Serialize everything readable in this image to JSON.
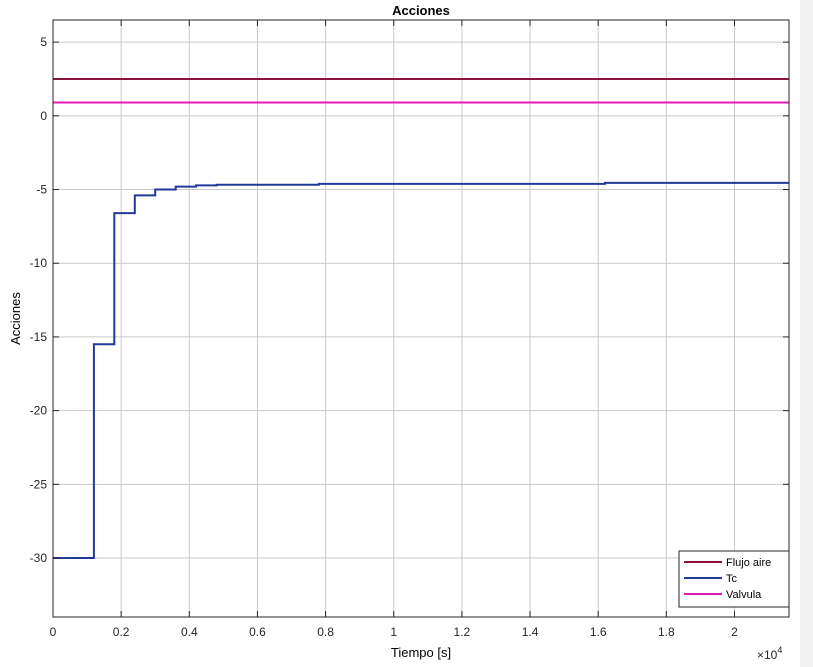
{
  "chart_data": {
    "type": "line",
    "title": "Acciones",
    "xlabel": "Tiempo [s]",
    "ylabel": "Acciones",
    "x_multiplier_label": "×10",
    "x_multiplier_exponent": "4",
    "xlim": [
      0,
      21600
    ],
    "ylim": [
      -34,
      6.5
    ],
    "x_ticks": [
      0,
      2000,
      4000,
      6000,
      8000,
      10000,
      12000,
      14000,
      16000,
      18000,
      20000
    ],
    "x_tick_labels": [
      "0",
      "0.2",
      "0.4",
      "0.6",
      "0.8",
      "1",
      "1.2",
      "1.4",
      "1.6",
      "1.8",
      "2"
    ],
    "y_ticks": [
      5,
      0,
      -5,
      -10,
      -15,
      -20,
      -25,
      -30
    ],
    "y_tick_labels": [
      "5",
      "0",
      "-5",
      "-10",
      "-15",
      "-20",
      "-25",
      "-30"
    ],
    "grid": true,
    "legend_position": "bottom-right",
    "series": [
      {
        "name": "Flujo aire",
        "color": "#8b1538",
        "x": [
          0,
          21600
        ],
        "y": [
          2.5,
          2.5
        ]
      },
      {
        "name": "Tc",
        "color": "#23399a",
        "step": true,
        "x": [
          0,
          1200,
          1800,
          2400,
          3000,
          3600,
          4200,
          4800,
          7800,
          16200,
          21600
        ],
        "y": [
          -30,
          -15.5,
          -6.6,
          -5.4,
          -5.0,
          -4.8,
          -4.72,
          -4.67,
          -4.62,
          -4.55,
          -4.55
        ]
      },
      {
        "name": "Valvula",
        "color": "#e619b4",
        "x": [
          0,
          21600
        ],
        "y": [
          0.9,
          0.9
        ]
      }
    ]
  }
}
